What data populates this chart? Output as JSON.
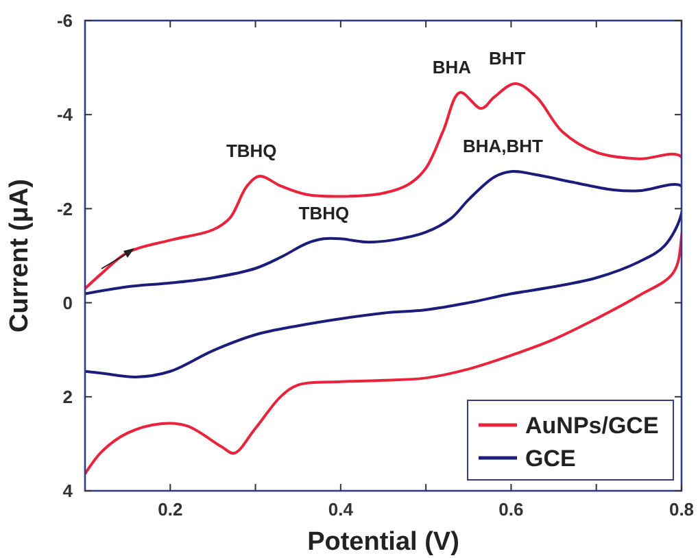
{
  "chart_data": {
    "type": "line",
    "xlabel": "Potential (V)",
    "ylabel": "Current (μA)",
    "xlim": [
      0.1,
      0.8
    ],
    "ylim": [
      4,
      -6
    ],
    "xticks": [
      0.2,
      {
        "value": 0.3,
        "label": null
      },
      0.4,
      {
        "value": 0.5,
        "label": null
      },
      0.6,
      {
        "value": 0.7,
        "label": null
      },
      0.8
    ],
    "yticks": [
      -6,
      -4,
      -2,
      0,
      2,
      4
    ],
    "grid": false,
    "legend": "bottom right",
    "line_style": "solid",
    "marker": "none",
    "series": [
      {
        "name": "AuNPs/GCE",
        "color": "#e8243c",
        "x": [
          0.1,
          0.12,
          0.15,
          0.2,
          0.25,
          0.27,
          0.29,
          0.305,
          0.33,
          0.36,
          0.4,
          0.45,
          0.48,
          0.5,
          0.52,
          0.54,
          0.565,
          0.58,
          0.605,
          0.63,
          0.66,
          0.7,
          0.75,
          0.8,
          0.8,
          0.79,
          0.75,
          0.7,
          0.65,
          0.6,
          0.55,
          0.5,
          0.45,
          0.4,
          0.35,
          0.33,
          0.3,
          0.275,
          0.26,
          0.22,
          0.19,
          0.15,
          0.12,
          0.1
        ],
        "values": [
          -0.3,
          -0.63,
          -1.07,
          -1.33,
          -1.55,
          -1.8,
          -2.48,
          -2.69,
          -2.48,
          -2.3,
          -2.26,
          -2.33,
          -2.52,
          -2.86,
          -3.64,
          -4.47,
          -4.13,
          -4.37,
          -4.66,
          -4.37,
          -3.64,
          -3.2,
          -3.06,
          -3.1,
          -1.4,
          -0.63,
          -0.15,
          0.34,
          0.78,
          1.12,
          1.41,
          1.6,
          1.65,
          1.68,
          1.75,
          1.99,
          2.67,
          3.2,
          3.06,
          2.62,
          2.57,
          2.77,
          3.16,
          3.64
        ]
      },
      {
        "name": "GCE",
        "color": "#1c1c7a",
        "x": [
          0.1,
          0.15,
          0.2,
          0.25,
          0.3,
          0.33,
          0.36,
          0.38,
          0.4,
          0.43,
          0.46,
          0.5,
          0.53,
          0.55,
          0.58,
          0.6,
          0.63,
          0.67,
          0.72,
          0.75,
          0.8,
          0.8,
          0.78,
          0.75,
          0.7,
          0.65,
          0.6,
          0.55,
          0.5,
          0.45,
          0.4,
          0.35,
          0.3,
          0.25,
          0.2,
          0.16,
          0.12,
          0.1
        ],
        "values": [
          -0.19,
          -0.34,
          -0.42,
          -0.53,
          -0.73,
          -0.97,
          -1.26,
          -1.36,
          -1.36,
          -1.29,
          -1.33,
          -1.5,
          -1.8,
          -2.19,
          -2.67,
          -2.79,
          -2.72,
          -2.57,
          -2.4,
          -2.38,
          -2.48,
          -1.9,
          -1.21,
          -0.87,
          -0.53,
          -0.34,
          -0.19,
          0,
          0.15,
          0.22,
          0.34,
          0.49,
          0.68,
          1.02,
          1.46,
          1.58,
          1.5,
          1.46
        ]
      }
    ],
    "annotations": [
      {
        "text": "TBHQ",
        "x": 0.305,
        "y": -2.69
      },
      {
        "text": "BHA",
        "x": 0.54,
        "y": -4.47
      },
      {
        "text": "BHT",
        "x": 0.605,
        "y": -4.66
      },
      {
        "text": "TBHQ",
        "x": 0.39,
        "y": -1.36
      },
      {
        "text": "BHA,BHT",
        "x": 0.6,
        "y": -2.79
      }
    ]
  }
}
